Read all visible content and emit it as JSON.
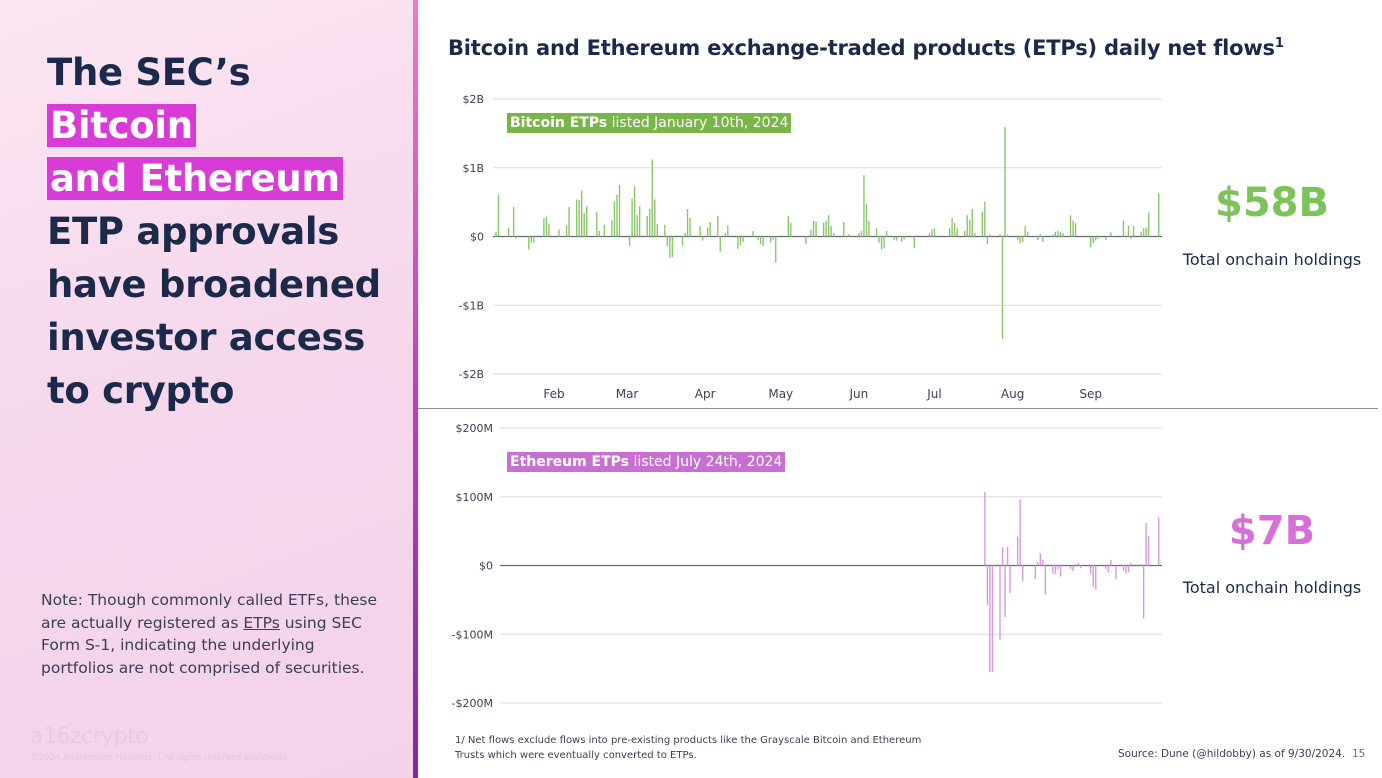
{
  "left": {
    "headline": {
      "pre": "The SEC’s ",
      "hl1": "Bitcoin",
      "hl2": "and Ethereum",
      "post": "ETP approvals have broadened investor access to crypto"
    },
    "note": {
      "pre": "Note: Though commonly called ETFs, these are actually registered as ",
      "link": "ETPs",
      "post": " using SEC Form S-1, indicating the underlying portfolios are not comprised of securities."
    },
    "logo": "a16zcrypto",
    "copyright": "©2024 Andreessen Horowitz. | All rights reserved worldwide."
  },
  "title": "Bitcoin and Ethereum exchange-traded products (ETPs) daily net flows",
  "title_sup": "1",
  "stats": {
    "btc": {
      "value": "$58B",
      "label": "Total onchain holdings",
      "color": "#7cc35a"
    },
    "eth": {
      "value": "$7B",
      "label": "Total onchain holdings",
      "color": "#d670d6"
    }
  },
  "footnote": "1/ Net flows exclude flows into pre-existing products like the Grayscale Bitcoin and Ethereum Trusts which were eventually converted to ETPs.",
  "source": "Source: Dune (@hildobby) as of 9/30/2024.",
  "page_number": "15",
  "chart_data": [
    {
      "type": "bar",
      "annotation": {
        "bold": "Bitcoin ETPs",
        "rest": " listed January 10th, 2024"
      },
      "color": "#8cc66a",
      "unit": "$B",
      "ylim": [
        -2,
        2
      ],
      "yticks": [
        2,
        1,
        0,
        -1,
        -2
      ],
      "ytick_labels": [
        "$2B",
        "$1B",
        "$0",
        "-$1B",
        "-$2B"
      ],
      "xtick_labels": [
        "Feb",
        "Mar",
        "Apr",
        "May",
        "Jun",
        "Jul",
        "Aug",
        "Sep"
      ],
      "grid": true,
      "points": [
        [
          "2024-01-11",
          0.07
        ],
        [
          "2024-01-12",
          0.61
        ],
        [
          "2024-01-16",
          0.13
        ],
        [
          "2024-01-18",
          0.43
        ],
        [
          "2024-01-19",
          -0.03
        ],
        [
          "2024-01-24",
          -0.19
        ],
        [
          "2024-01-25",
          -0.09
        ],
        [
          "2024-01-26",
          -0.09
        ],
        [
          "2024-01-30",
          0.26
        ],
        [
          "2024-01-31",
          0.29
        ],
        [
          "2024-02-01",
          0.18
        ],
        [
          "2024-02-05",
          0.1
        ],
        [
          "2024-02-08",
          0.16
        ],
        [
          "2024-02-09",
          0.43
        ],
        [
          "2024-02-12",
          0.54
        ],
        [
          "2024-02-13",
          0.53
        ],
        [
          "2024-02-14",
          0.67
        ],
        [
          "2024-02-15",
          0.34
        ],
        [
          "2024-02-16",
          0.44
        ],
        [
          "2024-02-20",
          0.36
        ],
        [
          "2024-02-21",
          0.08
        ],
        [
          "2024-02-23",
          0.17
        ],
        [
          "2024-02-26",
          0.23
        ],
        [
          "2024-02-27",
          0.51
        ],
        [
          "2024-02-28",
          0.61
        ],
        [
          "2024-02-29",
          0.75
        ],
        [
          "2024-03-04",
          -0.14
        ],
        [
          "2024-03-05",
          0.55
        ],
        [
          "2024-03-06",
          0.73
        ],
        [
          "2024-03-07",
          0.31
        ],
        [
          "2024-03-08",
          0.44
        ],
        [
          "2024-03-11",
          0.3
        ],
        [
          "2024-03-12",
          0.4
        ],
        [
          "2024-03-13",
          1.12
        ],
        [
          "2024-03-14",
          0.54
        ],
        [
          "2024-03-15",
          0.18
        ],
        [
          "2024-03-18",
          0.17
        ],
        [
          "2024-03-19",
          -0.14
        ],
        [
          "2024-03-20",
          -0.31
        ],
        [
          "2024-03-21",
          -0.3
        ],
        [
          "2024-03-25",
          -0.13
        ],
        [
          "2024-03-26",
          0.05
        ],
        [
          "2024-03-27",
          0.4
        ],
        [
          "2024-03-28",
          0.27
        ],
        [
          "2024-04-01",
          0.15
        ],
        [
          "2024-04-02",
          -0.06
        ],
        [
          "2024-04-04",
          0.13
        ],
        [
          "2024-04-05",
          0.21
        ],
        [
          "2024-04-08",
          0.3
        ],
        [
          "2024-04-09",
          -0.22
        ],
        [
          "2024-04-11",
          0.05
        ],
        [
          "2024-04-12",
          0.16
        ],
        [
          "2024-04-16",
          -0.18
        ],
        [
          "2024-04-17",
          -0.13
        ],
        [
          "2024-04-18",
          -0.08
        ],
        [
          "2024-04-22",
          0.08
        ],
        [
          "2024-04-24",
          -0.05
        ],
        [
          "2024-04-25",
          -0.11
        ],
        [
          "2024-04-26",
          -0.14
        ],
        [
          "2024-04-29",
          -0.09
        ],
        [
          "2024-04-30",
          -0.05
        ],
        [
          "2024-05-01",
          -0.38
        ],
        [
          "2024-05-06",
          0.3
        ],
        [
          "2024-05-07",
          0.2
        ],
        [
          "2024-05-13",
          -0.11
        ],
        [
          "2024-05-15",
          0.1
        ],
        [
          "2024-05-16",
          0.23
        ],
        [
          "2024-05-17",
          0.22
        ],
        [
          "2024-05-20",
          0.2
        ],
        [
          "2024-05-21",
          0.23
        ],
        [
          "2024-05-22",
          0.31
        ],
        [
          "2024-05-23",
          0.15
        ],
        [
          "2024-05-24",
          0.05
        ],
        [
          "2024-05-28",
          0.21
        ],
        [
          "2024-05-30",
          0.03
        ],
        [
          "2024-06-03",
          0.05
        ],
        [
          "2024-06-04",
          0.08
        ],
        [
          "2024-06-05",
          0.89
        ],
        [
          "2024-06-06",
          0.48
        ],
        [
          "2024-06-07",
          0.23
        ],
        [
          "2024-06-10",
          0.12
        ],
        [
          "2024-06-11",
          -0.09
        ],
        [
          "2024-06-12",
          -0.19
        ],
        [
          "2024-06-13",
          -0.17
        ],
        [
          "2024-06-14",
          0.08
        ],
        [
          "2024-06-17",
          -0.05
        ],
        [
          "2024-06-18",
          -0.06
        ],
        [
          "2024-06-20",
          -0.08
        ],
        [
          "2024-06-21",
          -0.04
        ],
        [
          "2024-06-25",
          -0.17
        ],
        [
          "2024-06-26",
          0.02
        ],
        [
          "2024-07-01",
          0.05
        ],
        [
          "2024-07-02",
          0.1
        ],
        [
          "2024-07-03",
          0.12
        ],
        [
          "2024-07-09",
          0.13
        ],
        [
          "2024-07-10",
          0.27
        ],
        [
          "2024-07-11",
          0.2
        ],
        [
          "2024-07-12",
          0.12
        ],
        [
          "2024-07-15",
          0.08
        ],
        [
          "2024-07-16",
          0.31
        ],
        [
          "2024-07-17",
          0.24
        ],
        [
          "2024-07-18",
          0.4
        ],
        [
          "2024-07-19",
          0.05
        ],
        [
          "2024-07-22",
          0.36
        ],
        [
          "2024-07-23",
          0.51
        ],
        [
          "2024-07-24",
          -0.11
        ],
        [
          "2024-07-25",
          0.03
        ],
        [
          "2024-07-29",
          0.03
        ],
        [
          "2024-07-30",
          -1.49
        ],
        [
          "2024-07-31",
          1.59
        ],
        [
          "2024-08-01",
          0.03
        ],
        [
          "2024-08-05",
          -0.05
        ],
        [
          "2024-08-06",
          -0.1
        ],
        [
          "2024-08-07",
          -0.08
        ],
        [
          "2024-08-08",
          0.15
        ],
        [
          "2024-08-09",
          0.07
        ],
        [
          "2024-08-13",
          -0.05
        ],
        [
          "2024-08-14",
          0.03
        ],
        [
          "2024-08-15",
          -0.08
        ],
        [
          "2024-08-19",
          0.03
        ],
        [
          "2024-08-20",
          0.07
        ],
        [
          "2024-08-21",
          0.08
        ],
        [
          "2024-08-22",
          0.07
        ],
        [
          "2024-08-23",
          0.05
        ],
        [
          "2024-08-26",
          0.31
        ],
        [
          "2024-08-27",
          0.23
        ],
        [
          "2024-08-28",
          0.2
        ],
        [
          "2024-09-03",
          -0.16
        ],
        [
          "2024-09-04",
          -0.1
        ],
        [
          "2024-09-05",
          -0.06
        ],
        [
          "2024-09-06",
          -0.03
        ],
        [
          "2024-09-09",
          -0.05
        ],
        [
          "2024-09-11",
          0.06
        ],
        [
          "2024-09-12",
          -0.01
        ],
        [
          "2024-09-16",
          0.23
        ],
        [
          "2024-09-18",
          0.16
        ],
        [
          "2024-09-19",
          -0.03
        ],
        [
          "2024-09-20",
          0.15
        ],
        [
          "2024-09-23",
          0.07
        ],
        [
          "2024-09-24",
          0.12
        ],
        [
          "2024-09-25",
          0.13
        ],
        [
          "2024-09-26",
          0.35
        ],
        [
          "2024-09-30",
          0.63
        ]
      ]
    },
    {
      "type": "bar",
      "annotation": {
        "bold": "Ethereum ETPs",
        "rest": " listed July 24th, 2024"
      },
      "color": "#d79ae0",
      "unit": "$M",
      "ylim": [
        -200,
        200
      ],
      "yticks": [
        200,
        100,
        0,
        -100,
        -200
      ],
      "ytick_labels": [
        "$200M",
        "$100M",
        "$0",
        "-$100M",
        "-$200M"
      ],
      "grid": true,
      "points": [
        [
          "2024-07-23",
          107
        ],
        [
          "2024-07-24",
          -58
        ],
        [
          "2024-07-25",
          -155
        ],
        [
          "2024-07-26",
          -155
        ],
        [
          "2024-07-29",
          -108
        ],
        [
          "2024-07-30",
          26
        ],
        [
          "2024-07-31",
          -75
        ],
        [
          "2024-08-01",
          27
        ],
        [
          "2024-08-02",
          -40
        ],
        [
          "2024-08-05",
          42
        ],
        [
          "2024-08-06",
          96
        ],
        [
          "2024-08-07",
          -23
        ],
        [
          "2024-08-12",
          -20
        ],
        [
          "2024-08-13",
          5
        ],
        [
          "2024-08-14",
          18
        ],
        [
          "2024-08-15",
          8
        ],
        [
          "2024-08-16",
          -42
        ],
        [
          "2024-08-19",
          -12
        ],
        [
          "2024-08-20",
          -12
        ],
        [
          "2024-08-21",
          -5
        ],
        [
          "2024-08-22",
          -16
        ],
        [
          "2024-08-26",
          -5
        ],
        [
          "2024-08-27",
          -8
        ],
        [
          "2024-08-29",
          4
        ],
        [
          "2024-08-30",
          -4
        ],
        [
          "2024-09-03",
          -12
        ],
        [
          "2024-09-04",
          -31
        ],
        [
          "2024-09-05",
          -35
        ],
        [
          "2024-09-09",
          -5
        ],
        [
          "2024-09-10",
          -10
        ],
        [
          "2024-09-11",
          8
        ],
        [
          "2024-09-13",
          -20
        ],
        [
          "2024-09-16",
          -8
        ],
        [
          "2024-09-17",
          -12
        ],
        [
          "2024-09-18",
          -10
        ],
        [
          "2024-09-19",
          4
        ],
        [
          "2024-09-23",
          2
        ],
        [
          "2024-09-24",
          -77
        ],
        [
          "2024-09-25",
          62
        ],
        [
          "2024-09-26",
          43
        ],
        [
          "2024-09-30",
          70
        ]
      ]
    }
  ]
}
